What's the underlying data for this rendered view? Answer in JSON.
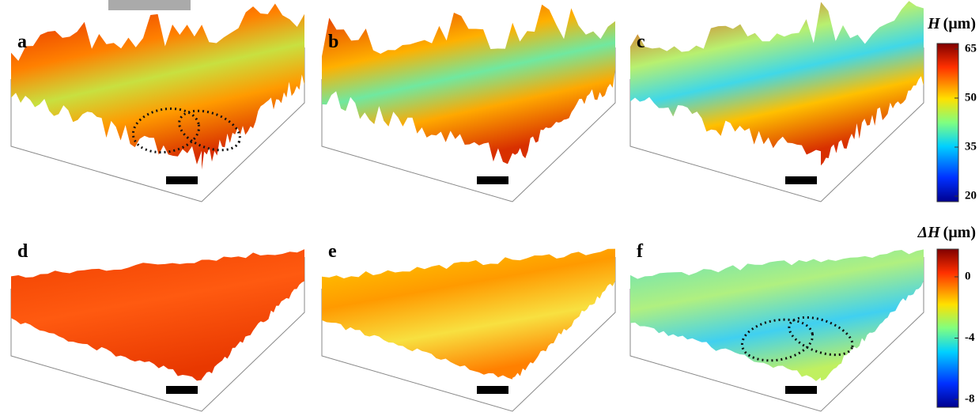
{
  "panels": [
    {
      "label": "a"
    },
    {
      "label": "b"
    },
    {
      "label": "c"
    },
    {
      "label": "d"
    },
    {
      "label": "e"
    },
    {
      "label": "f"
    }
  ],
  "colorbars": [
    {
      "symbol": "H",
      "unit": "(μm)",
      "ticks": [
        20,
        35,
        50,
        65
      ]
    },
    {
      "symbol": "ΔH",
      "unit": "(μm)",
      "ticks": [
        -8,
        -4,
        0
      ]
    }
  ]
}
